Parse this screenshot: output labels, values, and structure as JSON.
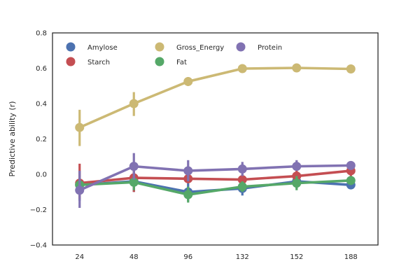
{
  "chart_data": {
    "type": "line",
    "categories": [
      "24",
      "48",
      "96",
      "132",
      "152",
      "188"
    ],
    "xlabel": "",
    "ylabel": "Predictive ability (r)",
    "ylim": [
      -0.4,
      0.8
    ],
    "yticks": [
      -0.4,
      -0.2,
      0.0,
      0.2,
      0.4,
      0.6,
      0.8
    ],
    "ytick_labels": [
      "−0.4",
      "−0.2",
      "0.0",
      "0.2",
      "0.4",
      "0.6",
      "0.8"
    ],
    "grid": false,
    "legend_position": "top-left",
    "series": [
      {
        "name": "Amylose",
        "color": "#4c72b0",
        "values": [
          -0.06,
          -0.04,
          -0.1,
          -0.08,
          -0.04,
          -0.06
        ],
        "err_low": [
          -0.15,
          -0.1,
          -0.15,
          -0.12,
          -0.08,
          -0.08
        ],
        "err_high": [
          0.02,
          0.02,
          -0.05,
          -0.04,
          0.0,
          -0.03
        ]
      },
      {
        "name": "Starch",
        "color": "#c44e52",
        "values": [
          -0.05,
          -0.02,
          -0.025,
          -0.03,
          -0.01,
          0.02
        ],
        "err_low": [
          -0.14,
          -0.1,
          -0.05,
          -0.06,
          -0.04,
          -0.01
        ],
        "err_high": [
          0.06,
          0.03,
          0.0,
          0.0,
          0.02,
          0.05
        ]
      },
      {
        "name": "Gross_Energy",
        "color": "#ccb974",
        "values": [
          0.265,
          0.4,
          0.525,
          0.598,
          0.602,
          0.596
        ],
        "err_low": [
          0.16,
          0.33,
          0.5,
          0.585,
          0.59,
          0.585
        ],
        "err_high": [
          0.365,
          0.465,
          0.55,
          0.61,
          0.615,
          0.607
        ]
      },
      {
        "name": "Fat",
        "color": "#55a868",
        "values": [
          -0.06,
          -0.045,
          -0.115,
          -0.07,
          -0.05,
          -0.035
        ],
        "err_low": [
          -0.1,
          -0.09,
          -0.16,
          -0.1,
          -0.09,
          -0.06
        ],
        "err_high": [
          -0.02,
          -0.01,
          -0.07,
          -0.04,
          -0.01,
          -0.01
        ]
      },
      {
        "name": "Protein",
        "color": "#8172b2",
        "values": [
          -0.09,
          0.045,
          0.02,
          0.03,
          0.045,
          0.05
        ],
        "err_low": [
          -0.19,
          -0.03,
          -0.04,
          -0.01,
          0.02,
          0.03
        ],
        "err_high": [
          0.02,
          0.12,
          0.08,
          0.07,
          0.08,
          0.07
        ]
      }
    ],
    "legend_order": [
      "Amylose",
      "Starch",
      "Gross_Energy",
      "Fat",
      "Protein"
    ]
  }
}
